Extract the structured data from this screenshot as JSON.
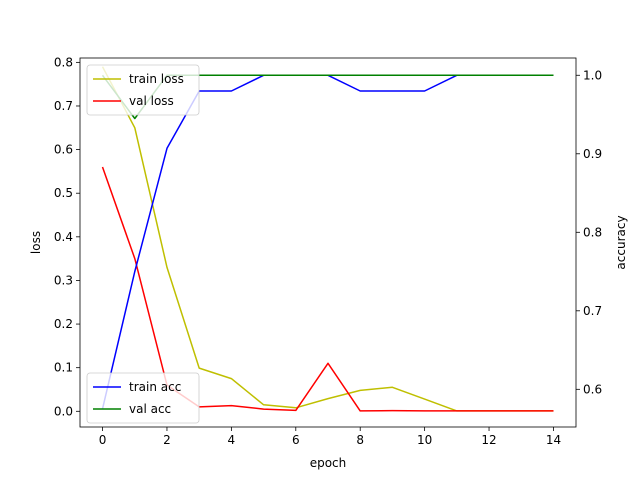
{
  "chart_data": {
    "type": "line",
    "xlabel": "epoch",
    "ylabel_left": "loss",
    "ylabel_right": "accuracy",
    "xlim": [
      -0.7,
      14.7
    ],
    "ylim_left": [
      -0.036,
      0.81
    ],
    "ylim_right": [
      0.552,
      1.022
    ],
    "x_ticks": [
      0,
      2,
      4,
      6,
      8,
      10,
      12,
      14
    ],
    "y_ticks_left": [
      0.0,
      0.1,
      0.2,
      0.3,
      0.4,
      0.5,
      0.6,
      0.7,
      0.8
    ],
    "y_ticks_right": [
      0.6,
      0.7,
      0.8,
      0.9,
      1.0
    ],
    "x": [
      0,
      1,
      2,
      3,
      4,
      5,
      6,
      7,
      8,
      9,
      10,
      11,
      12,
      13,
      14
    ],
    "series_loss": [
      {
        "name": "train loss",
        "color": "#bfbf00",
        "values": [
          0.79,
          0.65,
          0.33,
          0.099,
          0.075,
          0.015,
          0.008,
          0.029,
          0.048,
          0.055,
          0.028,
          0.001,
          0.001,
          0.001,
          0.001
        ]
      },
      {
        "name": "val loss",
        "color": "#ff0000",
        "values": [
          0.56,
          0.35,
          0.06,
          0.01,
          0.013,
          0.005,
          0.002,
          0.11,
          0.001,
          0.0015,
          0.001,
          0.001,
          0.001,
          0.001,
          0.001
        ]
      }
    ],
    "series_acc": [
      {
        "name": "train acc",
        "color": "#0000ff",
        "values": [
          0.575,
          0.75,
          0.907,
          0.98,
          0.98,
          1.0,
          1.0,
          1.0,
          0.98,
          0.98,
          0.98,
          1.0,
          1.0,
          1.0,
          1.0
        ]
      },
      {
        "name": "val acc",
        "color": "#008000",
        "values": [
          1.0,
          0.945,
          1.0,
          1.0,
          1.0,
          1.0,
          1.0,
          1.0,
          1.0,
          1.0,
          1.0,
          1.0,
          1.0,
          1.0,
          1.0
        ]
      }
    ],
    "legend_loss_position": "upper-left",
    "legend_acc_position": "lower-left",
    "grid": false
  }
}
